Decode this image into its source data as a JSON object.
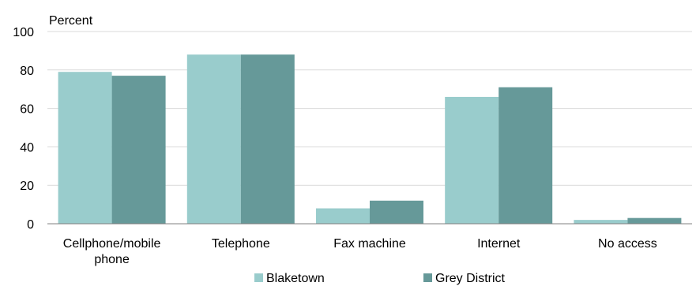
{
  "chart_data": {
    "type": "bar",
    "ylabel": "Percent",
    "ylim": [
      0,
      100
    ],
    "yticks": [
      0,
      20,
      40,
      60,
      80,
      100
    ],
    "categories": [
      [
        "Cellphone/mobile",
        "phone"
      ],
      [
        "Telephone"
      ],
      [
        "Fax machine"
      ],
      [
        "Internet"
      ],
      [
        "No access"
      ]
    ],
    "series": [
      {
        "name": "Blaketown",
        "color": "#99cccc",
        "values": [
          79,
          88,
          8,
          66,
          2
        ]
      },
      {
        "name": "Grey District",
        "color": "#669999",
        "values": [
          77,
          88,
          12,
          71,
          3
        ]
      }
    ],
    "grid": true,
    "legend_position": "bottom"
  }
}
